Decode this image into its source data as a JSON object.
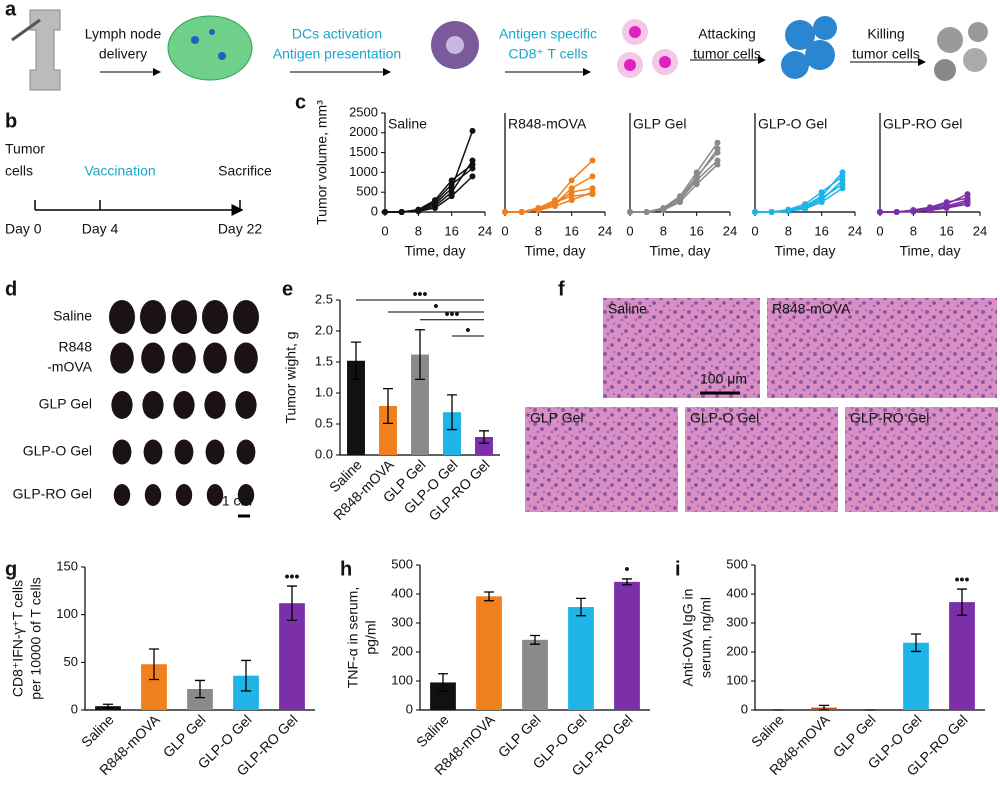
{
  "panel_labels": [
    "a",
    "b",
    "c",
    "d",
    "e",
    "f",
    "g",
    "h",
    "i"
  ],
  "schematic": {
    "steps": [
      [
        "Lymph node",
        "delivery"
      ],
      [
        "DCs activation",
        "Antigen presentation"
      ],
      [
        "Antigen specific",
        "CD8⁺ T cells"
      ],
      [
        "Attacking",
        "tumor cells"
      ],
      [
        "Killing",
        "tumor cells"
      ]
    ]
  },
  "timeline": {
    "events": [
      {
        "label": [
          "Tumor",
          "cells"
        ],
        "day": "Day 0"
      },
      {
        "label": [
          "Vaccination"
        ],
        "day": "Day 4"
      },
      {
        "label": [
          "Sacrifice"
        ],
        "day": "Day 22"
      }
    ]
  },
  "photos": {
    "rows": [
      [
        "Saline"
      ],
      [
        "R848",
        "-mOVA"
      ],
      [
        "GLP Gel"
      ],
      [
        "GLP-O Gel"
      ],
      [
        "GLP-RO Gel"
      ]
    ],
    "scale": "1 cm"
  },
  "histology": {
    "panels": [
      "Saline",
      "R848-mOVA",
      "GLP Gel",
      "GLP-O Gel",
      "GLP-RO Gel"
    ],
    "scale": "100 μm"
  },
  "chart_data": [
    {
      "type": "line",
      "title": "Saline",
      "ylabel": "Tumor volume, mm³",
      "xlabel": "Time, day",
      "x": [
        0,
        4,
        8,
        12,
        16,
        21
      ],
      "xlim": [
        0,
        24
      ],
      "xticks": [
        0,
        8,
        16,
        24
      ],
      "ylim": [
        0,
        2500
      ],
      "yticks": [
        0,
        500,
        1000,
        1500,
        2000,
        2500
      ],
      "series": [
        {
          "color": "#111111",
          "values": [
            0,
            0,
            50,
            200,
            600,
            2050
          ]
        },
        {
          "color": "#111111",
          "values": [
            0,
            0,
            30,
            150,
            500,
            1300
          ]
        },
        {
          "color": "#111111",
          "values": [
            0,
            0,
            40,
            250,
            700,
            1100
          ]
        },
        {
          "color": "#111111",
          "values": [
            0,
            0,
            20,
            100,
            400,
            900
          ]
        },
        {
          "color": "#111111",
          "values": [
            0,
            0,
            60,
            300,
            800,
            1200
          ]
        }
      ]
    },
    {
      "type": "line",
      "title": "R848-mOVA",
      "xlabel": "Time, day",
      "x": [
        0,
        4,
        8,
        12,
        16,
        21
      ],
      "xlim": [
        0,
        24
      ],
      "xticks": [
        0,
        8,
        16,
        24
      ],
      "ylim": [
        0,
        2500
      ],
      "series": [
        {
          "color": "#f07f1e",
          "values": [
            0,
            0,
            100,
            300,
            800,
            1300
          ]
        },
        {
          "color": "#f07f1e",
          "values": [
            0,
            0,
            50,
            200,
            500,
            600
          ]
        },
        {
          "color": "#f07f1e",
          "values": [
            0,
            0,
            80,
            250,
            400,
            450
          ]
        },
        {
          "color": "#f07f1e",
          "values": [
            0,
            0,
            40,
            150,
            300,
            500
          ]
        },
        {
          "color": "#f07f1e",
          "values": [
            0,
            0,
            60,
            200,
            600,
            900
          ]
        }
      ]
    },
    {
      "type": "line",
      "title": "GLP Gel",
      "xlabel": "Time, day",
      "x": [
        0,
        4,
        8,
        12,
        16,
        21
      ],
      "xlim": [
        0,
        24
      ],
      "xticks": [
        0,
        8,
        16,
        24
      ],
      "ylim": [
        0,
        2500
      ],
      "series": [
        {
          "color": "#8a8a8a",
          "values": [
            0,
            0,
            100,
            400,
            1000,
            1750
          ]
        },
        {
          "color": "#8a8a8a",
          "values": [
            0,
            0,
            80,
            350,
            900,
            1500
          ]
        },
        {
          "color": "#8a8a8a",
          "values": [
            0,
            0,
            60,
            300,
            800,
            1300
          ]
        },
        {
          "color": "#8a8a8a",
          "values": [
            0,
            0,
            50,
            250,
            700,
            1200
          ]
        },
        {
          "color": "#8a8a8a",
          "values": [
            0,
            0,
            90,
            300,
            850,
            1600
          ]
        }
      ]
    },
    {
      "type": "line",
      "title": "GLP-O Gel",
      "xlabel": "Time, day",
      "x": [
        0,
        4,
        8,
        12,
        16,
        21
      ],
      "xlim": [
        0,
        24
      ],
      "xticks": [
        0,
        8,
        16,
        24
      ],
      "ylim": [
        0,
        2500
      ],
      "series": [
        {
          "color": "#1fb4e8",
          "values": [
            0,
            0,
            50,
            150,
            400,
            1000
          ]
        },
        {
          "color": "#1fb4e8",
          "values": [
            0,
            0,
            30,
            100,
            300,
            800
          ]
        },
        {
          "color": "#1fb4e8",
          "values": [
            0,
            0,
            40,
            120,
            350,
            700
          ]
        },
        {
          "color": "#1fb4e8",
          "values": [
            0,
            0,
            20,
            80,
            250,
            600
          ]
        },
        {
          "color": "#1fb4e8",
          "values": [
            0,
            0,
            60,
            200,
            500,
            900
          ]
        }
      ]
    },
    {
      "type": "line",
      "title": "GLP-RO Gel",
      "xlabel": "Time, day",
      "x": [
        0,
        4,
        8,
        12,
        16,
        21
      ],
      "xlim": [
        0,
        24
      ],
      "xticks": [
        0,
        8,
        16,
        24
      ],
      "ylim": [
        0,
        2500
      ],
      "series": [
        {
          "color": "#7b2fa8",
          "values": [
            0,
            0,
            40,
            100,
            200,
            450
          ]
        },
        {
          "color": "#7b2fa8",
          "values": [
            0,
            0,
            30,
            80,
            150,
            300
          ]
        },
        {
          "color": "#7b2fa8",
          "values": [
            0,
            0,
            20,
            60,
            120,
            250
          ]
        },
        {
          "color": "#7b2fa8",
          "values": [
            0,
            0,
            50,
            120,
            250,
            350
          ]
        },
        {
          "color": "#7b2fa8",
          "values": [
            0,
            0,
            10,
            40,
            100,
            200
          ]
        }
      ]
    },
    {
      "type": "bar",
      "ylabel": [
        "Tumor wight, g"
      ],
      "categories": [
        "Saline",
        "R848-mOVA",
        "GLP Gel",
        "GLP-O Gel",
        "GLP-RO Gel"
      ],
      "values": [
        1.52,
        0.79,
        1.62,
        0.69,
        0.29
      ],
      "errors": [
        0.3,
        0.28,
        0.4,
        0.28,
        0.1
      ],
      "colors": [
        "#111111",
        "#f07f1e",
        "#8a8a8a",
        "#1fb4e8",
        "#7b2fa8"
      ],
      "ylim": [
        0,
        2.5
      ],
      "yticks": [
        {
          "value": 0,
          "label": "0.0"
        },
        0.5,
        {
          "value": 1,
          "label": "1.0"
        },
        1.5,
        {
          "value": 2,
          "label": "2.0"
        },
        2.5
      ],
      "brackets": [
        {
          "pair": [
            "Saline",
            "GLP-RO Gel"
          ],
          "label": "•••"
        },
        {
          "pair": [
            "R848-mOVA",
            "GLP-RO Gel"
          ],
          "label": "•"
        },
        {
          "pair": [
            "GLP Gel",
            "GLP-RO Gel"
          ],
          "label": "•••"
        },
        {
          "pair": [
            "GLP-O Gel",
            "GLP-RO Gel"
          ],
          "label": "•"
        }
      ]
    },
    {
      "type": "bar",
      "ylabel": [
        "CD8⁺IFN-γ⁺T cells",
        "per 10000 of T cells"
      ],
      "categories": [
        "Saline",
        "R848-mOVA",
        "GLP Gel",
        "GLP-O Gel",
        "GLP-RO Gel"
      ],
      "values": [
        4,
        48,
        22,
        36,
        112
      ],
      "errors": [
        2,
        16,
        9,
        16,
        18
      ],
      "colors": [
        "#111111",
        "#f07f1e",
        "#8a8a8a",
        "#1fb4e8",
        "#7b2fa8"
      ],
      "ylim": [
        0,
        150
      ],
      "yticks": [
        0,
        50,
        100,
        150
      ],
      "annotations": [
        {
          "category": "GLP-RO Gel",
          "label": "•••"
        }
      ]
    },
    {
      "type": "bar",
      "ylabel": [
        "TNF-α in serum,",
        "pg/ml"
      ],
      "categories": [
        "Saline",
        "R848-mOVA",
        "GLP Gel",
        "GLP-O Gel",
        "GLP-RO Gel"
      ],
      "values": [
        95,
        392,
        242,
        355,
        442
      ],
      "errors": [
        30,
        15,
        15,
        30,
        10
      ],
      "colors": [
        "#111111",
        "#f07f1e",
        "#8a8a8a",
        "#1fb4e8",
        "#7b2fa8"
      ],
      "ylim": [
        0,
        500
      ],
      "yticks": [
        0,
        100,
        200,
        300,
        400,
        500
      ],
      "annotations": [
        {
          "category": "GLP-RO Gel",
          "label": "•"
        }
      ]
    },
    {
      "type": "bar",
      "ylabel": [
        "Anti-OVA IgG in",
        "serum, ng/ml"
      ],
      "categories": [
        "Saline",
        "R848-mOVA",
        "GLP Gel",
        "GLP-O Gel",
        "GLP-RO Gel"
      ],
      "values": [
        0,
        8,
        0,
        232,
        372
      ],
      "errors": [
        0,
        8,
        0,
        30,
        45
      ],
      "colors": [
        "#111111",
        "#c0501e",
        "#8a8a8a",
        "#1fb4e8",
        "#7b2fa8"
      ],
      "ylim": [
        0,
        500
      ],
      "yticks": [
        0,
        100,
        200,
        300,
        400,
        500
      ],
      "annotations": [
        {
          "category": "GLP-RO Gel",
          "label": "•••"
        }
      ]
    }
  ]
}
